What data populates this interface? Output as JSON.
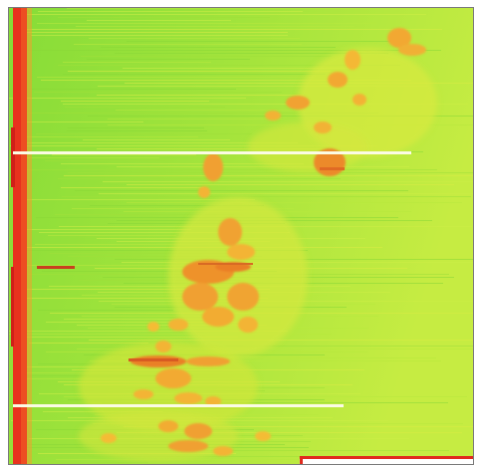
{
  "heatmap": {
    "colors": {
      "background_green": "#9be23a",
      "light_green": "#c7ee44",
      "yellow": "#e6ea3a",
      "orange": "#f2b032",
      "dark_orange": "#ea7f28",
      "red": "#e62020",
      "white_line": "#fbfbe0",
      "frame": "#7a7a7a"
    },
    "description_labels": []
  }
}
